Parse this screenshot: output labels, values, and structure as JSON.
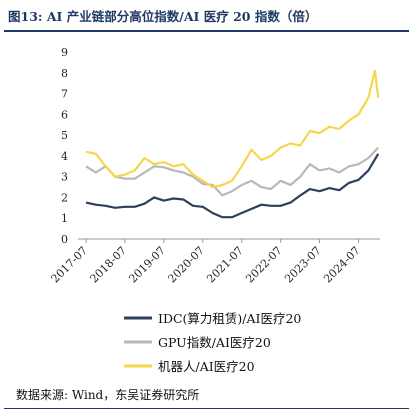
{
  "header": {
    "title": "图13:  AI 产业链部分高位指数/AI 医疗 20 指数（倍）"
  },
  "footer": {
    "source": "数据来源:  Wind，东吴证券研究所"
  },
  "colors": {
    "IDC": "#2e3f5e",
    "GPU": "#b8b8b8",
    "ROBOT": "#f7d64a",
    "title": "#1f3a66"
  },
  "chart_data": {
    "type": "line",
    "title": "图13:  AI 产业链部分高位指数/AI 医疗 20 指数（倍）",
    "ylim": [
      0,
      9
    ],
    "y_ticks": [
      "0",
      "1",
      "2",
      "3",
      "4",
      "5",
      "6",
      "7",
      "8",
      "9"
    ],
    "x_ticks": [
      "2017-07",
      "2018-07",
      "2019-07",
      "2020-07",
      "2021-07",
      "2022-07",
      "2023-07",
      "2024-07"
    ],
    "grid": false,
    "legend_position": "bottom",
    "series": [
      {
        "name": "IDC(算力租赁)/AI医疗20",
        "points": [
          [
            "2017-07",
            1.75
          ],
          [
            "2017-10",
            1.65
          ],
          [
            "2018-01",
            1.6
          ],
          [
            "2018-04",
            1.5
          ],
          [
            "2018-07",
            1.55
          ],
          [
            "2018-10",
            1.55
          ],
          [
            "2019-01",
            1.7
          ],
          [
            "2019-04",
            2.0
          ],
          [
            "2019-07",
            1.85
          ],
          [
            "2019-10",
            1.95
          ],
          [
            "2020-01",
            1.9
          ],
          [
            "2020-04",
            1.6
          ],
          [
            "2020-07",
            1.55
          ],
          [
            "2020-10",
            1.25
          ],
          [
            "2021-01",
            1.05
          ],
          [
            "2021-04",
            1.05
          ],
          [
            "2021-07",
            1.25
          ],
          [
            "2021-10",
            1.45
          ],
          [
            "2022-01",
            1.65
          ],
          [
            "2022-04",
            1.6
          ],
          [
            "2022-07",
            1.6
          ],
          [
            "2022-10",
            1.75
          ],
          [
            "2023-01",
            2.1
          ],
          [
            "2023-04",
            2.4
          ],
          [
            "2023-07",
            2.3
          ],
          [
            "2023-10",
            2.45
          ],
          [
            "2024-01",
            2.35
          ],
          [
            "2024-04",
            2.7
          ],
          [
            "2024-07",
            2.85
          ],
          [
            "2024-10",
            3.3
          ],
          [
            "2025-01",
            4.1
          ]
        ]
      },
      {
        "name": "GPU指数/AI医疗20",
        "points": [
          [
            "2017-07",
            3.5
          ],
          [
            "2017-10",
            3.2
          ],
          [
            "2018-01",
            3.5
          ],
          [
            "2018-04",
            3.0
          ],
          [
            "2018-07",
            2.9
          ],
          [
            "2018-10",
            2.9
          ],
          [
            "2019-01",
            3.2
          ],
          [
            "2019-04",
            3.5
          ],
          [
            "2019-07",
            3.45
          ],
          [
            "2019-10",
            3.3
          ],
          [
            "2020-01",
            3.2
          ],
          [
            "2020-04",
            3.0
          ],
          [
            "2020-07",
            2.65
          ],
          [
            "2020-10",
            2.6
          ],
          [
            "2021-01",
            2.1
          ],
          [
            "2021-04",
            2.3
          ],
          [
            "2021-07",
            2.6
          ],
          [
            "2021-10",
            2.8
          ],
          [
            "2022-01",
            2.5
          ],
          [
            "2022-04",
            2.4
          ],
          [
            "2022-07",
            2.8
          ],
          [
            "2022-10",
            2.6
          ],
          [
            "2023-01",
            3.0
          ],
          [
            "2023-04",
            3.6
          ],
          [
            "2023-07",
            3.3
          ],
          [
            "2023-10",
            3.4
          ],
          [
            "2024-01",
            3.2
          ],
          [
            "2024-04",
            3.5
          ],
          [
            "2024-07",
            3.6
          ],
          [
            "2024-10",
            3.9
          ],
          [
            "2025-01",
            4.4
          ]
        ]
      },
      {
        "name": "机器人/AI医疗20",
        "points": [
          [
            "2017-07",
            4.2
          ],
          [
            "2017-10",
            4.1
          ],
          [
            "2018-01",
            3.5
          ],
          [
            "2018-04",
            3.0
          ],
          [
            "2018-07",
            3.1
          ],
          [
            "2018-10",
            3.3
          ],
          [
            "2019-01",
            3.9
          ],
          [
            "2019-04",
            3.6
          ],
          [
            "2019-07",
            3.7
          ],
          [
            "2019-10",
            3.5
          ],
          [
            "2020-01",
            3.6
          ],
          [
            "2020-04",
            3.1
          ],
          [
            "2020-07",
            2.8
          ],
          [
            "2020-10",
            2.5
          ],
          [
            "2021-01",
            2.6
          ],
          [
            "2021-04",
            2.8
          ],
          [
            "2021-07",
            3.5
          ],
          [
            "2021-10",
            4.3
          ],
          [
            "2022-01",
            3.8
          ],
          [
            "2022-04",
            4.0
          ],
          [
            "2022-07",
            4.4
          ],
          [
            "2022-10",
            4.6
          ],
          [
            "2023-01",
            4.5
          ],
          [
            "2023-04",
            5.2
          ],
          [
            "2023-07",
            5.1
          ],
          [
            "2023-10",
            5.4
          ],
          [
            "2024-01",
            5.3
          ],
          [
            "2024-04",
            5.7
          ],
          [
            "2024-07",
            6.0
          ],
          [
            "2024-10",
            6.8
          ],
          [
            "2024-12",
            8.1
          ],
          [
            "2025-01",
            6.8
          ]
        ]
      }
    ]
  }
}
